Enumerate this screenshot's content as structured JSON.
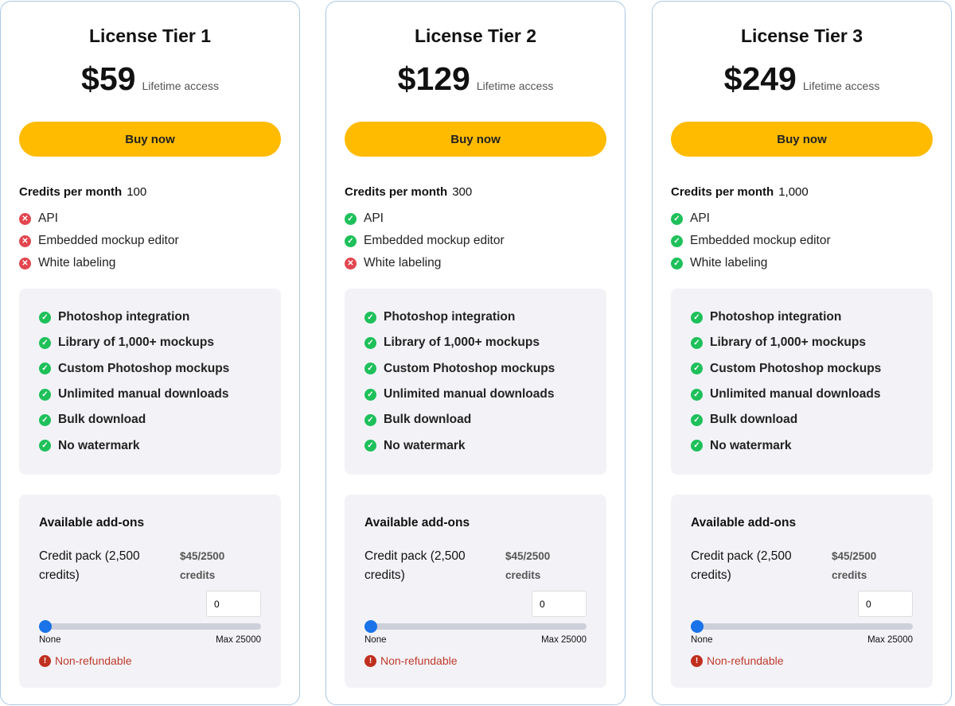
{
  "colors": {
    "accent": "#ffbb00",
    "check": "#1ec05a",
    "cross": "#e2464f",
    "slider": "#1a73e8",
    "warning": "#c0392b"
  },
  "tiers": [
    {
      "title": "License Tier 1",
      "price": "$59",
      "access": "Lifetime access",
      "buy_label": "Buy now",
      "credits_label": "Credits per month",
      "credits_value": "100",
      "features": [
        {
          "label": "API",
          "included": false,
          "icon": "x-circle-icon"
        },
        {
          "label": "Embedded mockup editor",
          "included": false,
          "icon": "x-circle-icon"
        },
        {
          "label": "White labeling",
          "included": false,
          "icon": "x-circle-icon"
        }
      ]
    },
    {
      "title": "License Tier 2",
      "price": "$129",
      "access": "Lifetime access",
      "buy_label": "Buy now",
      "credits_label": "Credits per month",
      "credits_value": "300",
      "features": [
        {
          "label": "API",
          "included": true,
          "icon": "check-circle-icon"
        },
        {
          "label": "Embedded mockup editor",
          "included": true,
          "icon": "check-circle-icon"
        },
        {
          "label": "White labeling",
          "included": false,
          "icon": "x-circle-icon"
        }
      ]
    },
    {
      "title": "License Tier 3",
      "price": "$249",
      "access": "Lifetime access",
      "buy_label": "Buy now",
      "credits_label": "Credits per month",
      "credits_value": "1,000",
      "features": [
        {
          "label": "API",
          "included": true,
          "icon": "check-circle-icon"
        },
        {
          "label": "Embedded mockup editor",
          "included": true,
          "icon": "check-circle-icon"
        },
        {
          "label": "White labeling",
          "included": true,
          "icon": "check-circle-icon"
        }
      ]
    }
  ],
  "included": [
    "Photoshop integration",
    "Library of 1,000+ mockups",
    "Custom Photoshop mockups",
    "Unlimited manual downloads",
    "Bulk download",
    "No watermark"
  ],
  "addons": {
    "title": "Available add-ons",
    "pack_label": "Credit pack (2,500 credits)",
    "pack_price": "$45/2500 credits",
    "quantity": "0",
    "slider_value": 0,
    "slider_min_label": "None",
    "slider_max_label": "Max 25000",
    "warning": "Non-refundable"
  }
}
